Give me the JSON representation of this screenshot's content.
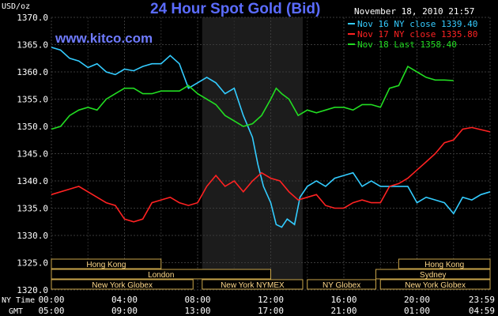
{
  "title": "24 Hour Spot Gold (Bid)",
  "site": "www.kitco.com",
  "timestamp": "November 18, 2010 21:57",
  "y_unit": "USD/oz",
  "time_row_labels": [
    "NY Time",
    "GMT"
  ],
  "legend": [
    {
      "label": "Nov 16 NY close 1339.40",
      "color": "#33ccff"
    },
    {
      "label": "Nov 17 NY close 1335.80",
      "color": "#ff2222"
    },
    {
      "label": "Nov 18 Last 1358.40",
      "color": "#22dd22"
    }
  ],
  "sessions": [
    {
      "label": "Hong Kong",
      "start": 0,
      "end": 6
    },
    {
      "label": "London",
      "start": 0,
      "end": 12
    },
    {
      "label": "New York Globex",
      "start": 0,
      "end": 7.75
    },
    {
      "label": "New York NYMEX",
      "start": 8.25,
      "end": 13.75
    },
    {
      "label": "NY Globex",
      "start": 14,
      "end": 17.75
    },
    {
      "label": "Sydney",
      "start": 17.75,
      "end": 24
    },
    {
      "label": "Hong Kong",
      "start": 19,
      "end": 24
    },
    {
      "label": "New York Globex",
      "start": 18,
      "end": 24
    }
  ],
  "chart_data": {
    "type": "line",
    "title": "24 Hour Spot Gold (Bid)",
    "ylabel": "USD/oz",
    "ylim": [
      1320,
      1370
    ],
    "xlim": [
      0,
      24
    ],
    "yticks": [
      "1320.0",
      "1325.0",
      "1330.0",
      "1335.0",
      "1340.0",
      "1345.0",
      "1350.0",
      "1355.0",
      "1360.0",
      "1365.0",
      "1370.0"
    ],
    "xticks_ny": [
      "00:00",
      "04:00",
      "08:00",
      "12:00",
      "16:00",
      "20:00",
      "23:59"
    ],
    "xticks_gmt": [
      "05:00",
      "09:00",
      "13:00",
      "17:00",
      "21:00",
      "01:00",
      "04:59"
    ],
    "grid": true,
    "highlight_hours": [
      8.25,
      13.75
    ],
    "series": [
      {
        "name": "Nov 16 NY close 1339.40",
        "color": "#33ccff",
        "points": [
          [
            0,
            1364.5
          ],
          [
            0.5,
            1364
          ],
          [
            1,
            1362.5
          ],
          [
            1.5,
            1362
          ],
          [
            2,
            1360.8
          ],
          [
            2.5,
            1361.5
          ],
          [
            3,
            1360
          ],
          [
            3.5,
            1359.5
          ],
          [
            4,
            1360.5
          ],
          [
            4.5,
            1360.2
          ],
          [
            5,
            1361
          ],
          [
            5.5,
            1361.5
          ],
          [
            6,
            1361.5
          ],
          [
            6.5,
            1363
          ],
          [
            7,
            1361.5
          ],
          [
            7.5,
            1357
          ],
          [
            8,
            1358
          ],
          [
            8.5,
            1359
          ],
          [
            9,
            1358
          ],
          [
            9.5,
            1356
          ],
          [
            10,
            1357
          ],
          [
            10.5,
            1352
          ],
          [
            11,
            1348
          ],
          [
            11.3,
            1343
          ],
          [
            11.6,
            1339
          ],
          [
            12,
            1336
          ],
          [
            12.3,
            1332
          ],
          [
            12.6,
            1331.5
          ],
          [
            12.9,
            1333
          ],
          [
            13.3,
            1332
          ],
          [
            13.6,
            1337
          ],
          [
            14,
            1339
          ],
          [
            14.5,
            1340
          ],
          [
            15,
            1339
          ],
          [
            15.5,
            1340.5
          ],
          [
            16,
            1341
          ],
          [
            16.5,
            1341.5
          ],
          [
            17,
            1339
          ],
          [
            17.5,
            1340
          ],
          [
            18,
            1339
          ],
          [
            18.5,
            1339
          ],
          [
            19,
            1339
          ],
          [
            19.5,
            1339
          ],
          [
            20,
            1336
          ],
          [
            20.5,
            1337
          ],
          [
            21,
            1336.5
          ],
          [
            21.5,
            1336
          ],
          [
            22,
            1334
          ],
          [
            22.5,
            1337
          ],
          [
            23,
            1336.5
          ],
          [
            23.5,
            1337.5
          ],
          [
            24,
            1338
          ]
        ]
      },
      {
        "name": "Nov 17 NY close 1335.80",
        "color": "#ff2222",
        "points": [
          [
            0,
            1337.5
          ],
          [
            0.5,
            1338
          ],
          [
            1,
            1338.5
          ],
          [
            1.5,
            1339
          ],
          [
            2,
            1338
          ],
          [
            2.5,
            1337
          ],
          [
            3,
            1336
          ],
          [
            3.5,
            1335.5
          ],
          [
            4,
            1333
          ],
          [
            4.5,
            1332.5
          ],
          [
            5,
            1333
          ],
          [
            5.5,
            1336
          ],
          [
            6,
            1336.5
          ],
          [
            6.5,
            1337
          ],
          [
            7,
            1336
          ],
          [
            7.5,
            1335.5
          ],
          [
            8,
            1336
          ],
          [
            8.5,
            1339
          ],
          [
            9,
            1341
          ],
          [
            9.5,
            1339
          ],
          [
            10,
            1340
          ],
          [
            10.5,
            1338
          ],
          [
            11,
            1340
          ],
          [
            11.5,
            1341.5
          ],
          [
            12,
            1340.5
          ],
          [
            12.5,
            1340
          ],
          [
            13,
            1338
          ],
          [
            13.5,
            1336.5
          ],
          [
            14,
            1337
          ],
          [
            14.5,
            1337.5
          ],
          [
            15,
            1335.5
          ],
          [
            15.5,
            1335
          ],
          [
            16,
            1335
          ],
          [
            16.5,
            1336
          ],
          [
            17,
            1336.5
          ],
          [
            17.5,
            1336
          ],
          [
            18,
            1336
          ],
          [
            18.5,
            1339
          ],
          [
            19,
            1339.5
          ],
          [
            19.5,
            1340.5
          ],
          [
            20,
            1342
          ],
          [
            20.5,
            1343.5
          ],
          [
            21,
            1345
          ],
          [
            21.5,
            1347
          ],
          [
            22,
            1347.5
          ],
          [
            22.5,
            1349.5
          ],
          [
            23,
            1349.8
          ],
          [
            23.5,
            1349.4
          ],
          [
            24,
            1349
          ]
        ]
      },
      {
        "name": "Nov 18 Last 1358.40",
        "color": "#22dd22",
        "points": [
          [
            0,
            1349.5
          ],
          [
            0.5,
            1350
          ],
          [
            1,
            1352
          ],
          [
            1.5,
            1353
          ],
          [
            2,
            1353.5
          ],
          [
            2.5,
            1353
          ],
          [
            3,
            1355
          ],
          [
            3.5,
            1356
          ],
          [
            4,
            1357
          ],
          [
            4.5,
            1357
          ],
          [
            5,
            1356
          ],
          [
            5.5,
            1356
          ],
          [
            6,
            1356.5
          ],
          [
            6.5,
            1356.5
          ],
          [
            7,
            1356.5
          ],
          [
            7.5,
            1357.5
          ],
          [
            8,
            1356
          ],
          [
            8.5,
            1355
          ],
          [
            9,
            1354
          ],
          [
            9.5,
            1352
          ],
          [
            10,
            1351
          ],
          [
            10.5,
            1350
          ],
          [
            11,
            1350.5
          ],
          [
            11.5,
            1352
          ],
          [
            12,
            1355
          ],
          [
            12.3,
            1357
          ],
          [
            12.6,
            1356
          ],
          [
            13,
            1355
          ],
          [
            13.5,
            1352
          ],
          [
            14,
            1353
          ],
          [
            14.5,
            1352.5
          ],
          [
            15,
            1353
          ],
          [
            15.5,
            1353.5
          ],
          [
            16,
            1353.5
          ],
          [
            16.5,
            1353
          ],
          [
            17,
            1354
          ],
          [
            17.5,
            1354
          ],
          [
            18,
            1353.5
          ],
          [
            18.5,
            1357
          ],
          [
            19,
            1357.5
          ],
          [
            19.5,
            1361
          ],
          [
            20,
            1360
          ],
          [
            20.5,
            1359
          ],
          [
            21,
            1358.5
          ],
          [
            21.5,
            1358.5
          ],
          [
            22,
            1358.4
          ]
        ]
      }
    ]
  }
}
